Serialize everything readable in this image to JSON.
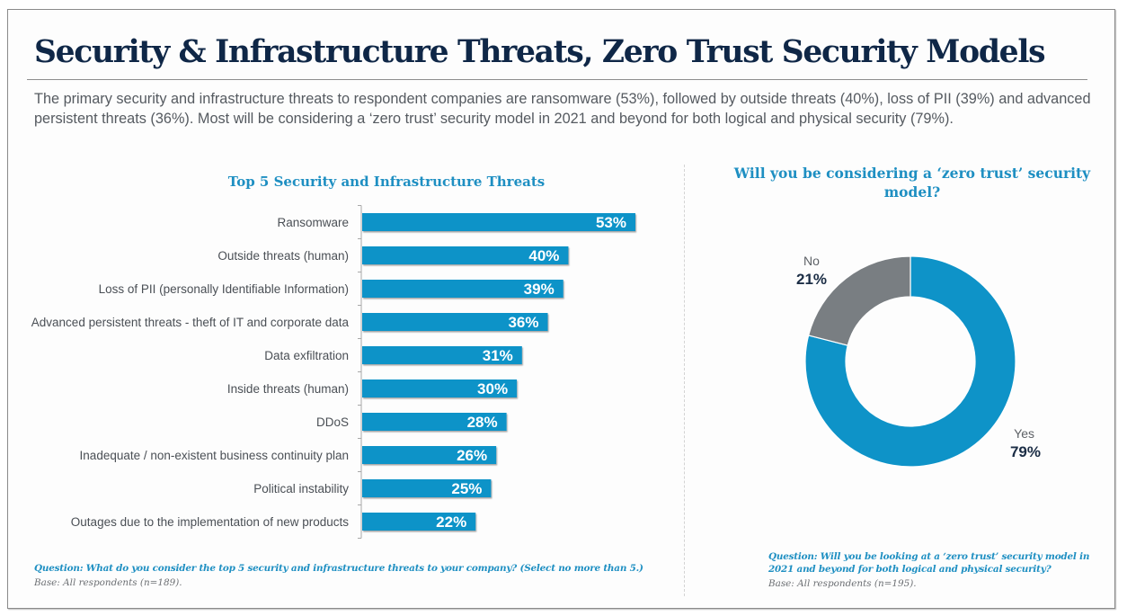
{
  "page": {
    "title": "Security & Infrastructure Threats, Zero Trust Security Models",
    "intro": "The primary security and infrastructure threats to respondent companies are ransomware (53%), followed by outside threats (40%), loss of PII (39%) and advanced persistent threats (36%). Most will be considering a ‘zero trust’ security model in 2021 and beyond for both logical and physical security (79%)."
  },
  "colors": {
    "title": "#0f2747",
    "accent": "#1e8fc2",
    "bar": "#0e93c8",
    "donut_yes": "#0e93c8",
    "donut_no": "#797e82"
  },
  "chart_data": [
    {
      "type": "bar",
      "orientation": "horizontal",
      "title": "Top 5 Security and Infrastructure Threats",
      "xlabel": "",
      "ylabel": "",
      "xlim": [
        0,
        53
      ],
      "grid": false,
      "categories": [
        "Ransomware",
        "Outside threats (human)",
        "Loss of PII (personally Identifiable Information)",
        "Advanced persistent threats - theft of IT and corporate data",
        "Data exfiltration",
        "Inside threats (human)",
        "DDoS",
        "Inadequate / non-existent business continuity plan",
        "Political instability",
        "Outages due to the implementation of new products"
      ],
      "values": [
        53,
        40,
        39,
        36,
        31,
        30,
        28,
        26,
        25,
        22
      ],
      "value_labels": [
        "53%",
        "40%",
        "39%",
        "36%",
        "31%",
        "30%",
        "28%",
        "26%",
        "25%",
        "22%"
      ],
      "question": "Question: What do you consider the top 5 security and infrastructure threats to your company? (Select no more than 5.)",
      "base": "Base: All respondents (n=189)."
    },
    {
      "type": "pie",
      "variant": "donut",
      "title": "Will you be considering a ‘zero trust’ security model?",
      "slices": [
        {
          "label": "Yes",
          "value": 79,
          "value_label": "79%"
        },
        {
          "label": "No",
          "value": 21,
          "value_label": "21%"
        }
      ],
      "question": "Question: Will you be looking at a ‘zero trust’ security model in 2021 and beyond for both logical and physical security?",
      "base": "Base: All respondents (n=195)."
    }
  ]
}
